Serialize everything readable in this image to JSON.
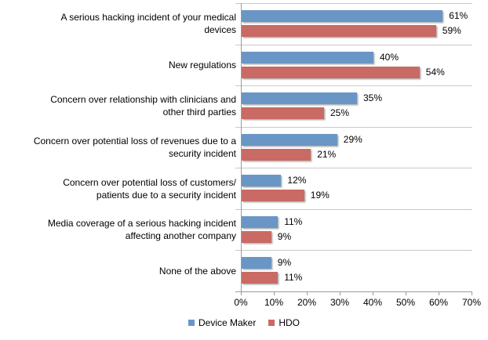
{
  "chart_data": {
    "type": "bar",
    "orientation": "horizontal",
    "title": "",
    "xlabel": "",
    "ylabel": "",
    "categories": [
      "A serious hacking incident of your medical\ndevices",
      "New regulations",
      "Concern over relationship with clinicians and\nother third parties",
      "Concern over potential loss of revenues due to a\nsecurity incident",
      "Concern over potential loss of customers/\npatients due to a security incident",
      "Media coverage of a serious hacking incident\naffecting another company",
      "None of the above"
    ],
    "series": [
      {
        "name": "Device Maker",
        "color": "#6996c5",
        "values": [
          61,
          40,
          35,
          29,
          12,
          11,
          9
        ]
      },
      {
        "name": "HDO",
        "color": "#c96a64",
        "values": [
          59,
          54,
          25,
          21,
          19,
          9,
          11
        ]
      }
    ],
    "value_label_suffix": "%",
    "x_ticks": [
      "0%",
      "10%",
      "20%",
      "30%",
      "40%",
      "50%",
      "60%",
      "70%"
    ],
    "xlim": [
      0,
      70
    ],
    "grid": "category-separators",
    "legend_position": "bottom"
  },
  "colors": {
    "axis": "#9b9b9b",
    "gridline": "#c9c9c9",
    "text": "#000000",
    "background": "#ffffff"
  }
}
